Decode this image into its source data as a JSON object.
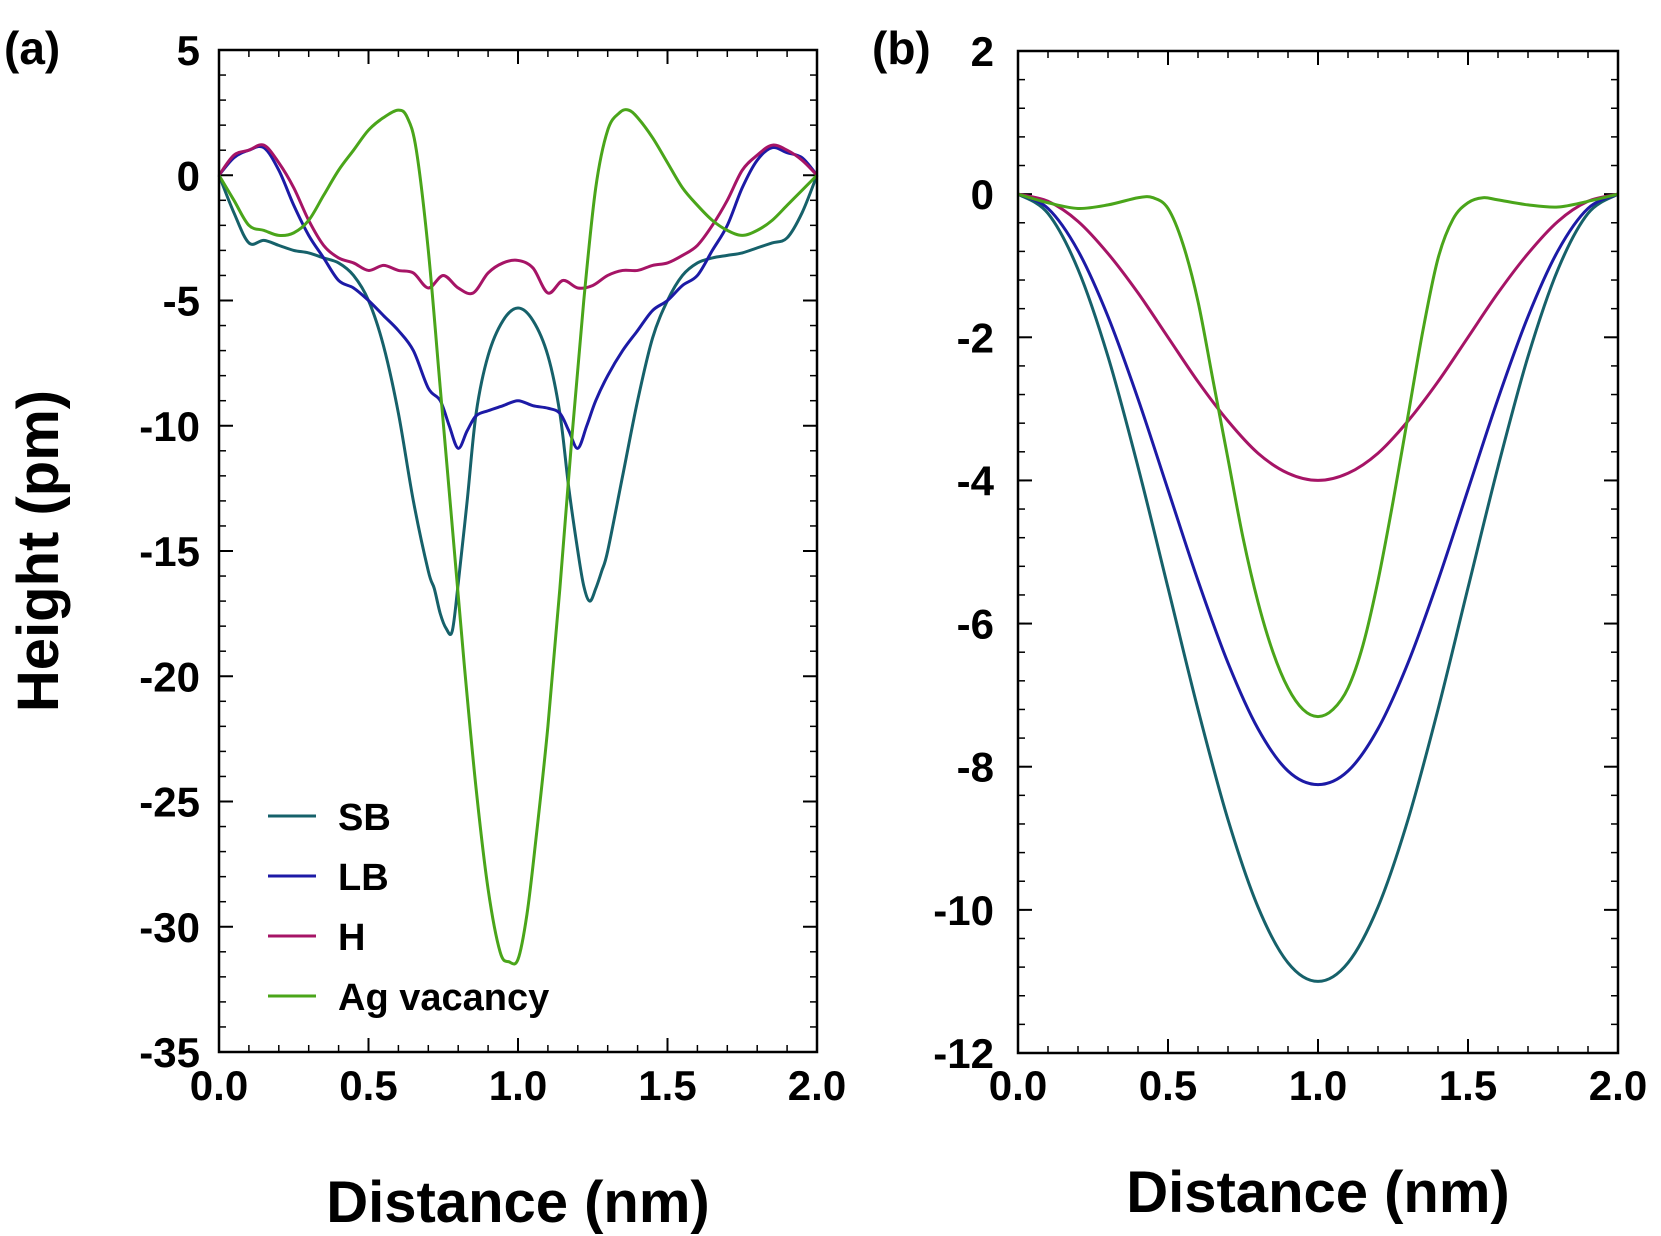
{
  "figure": {
    "ylabel": "Height (pm)"
  },
  "colors": {
    "SB": "#16616a",
    "LB": "#1c1aa6",
    "H": "#a61466",
    "Ag vacancy": "#4aa51a"
  },
  "chart_data": [
    {
      "panel_label": "(a)",
      "type": "line",
      "title": "",
      "xlabel": "Distance (nm)",
      "ylabel": "Height (pm)",
      "xlim": [
        0,
        2
      ],
      "ylim": [
        -35,
        5
      ],
      "xticks": [
        0,
        0.5,
        1,
        1.5,
        2
      ],
      "xtick_labels": [
        "0.0",
        "0.5",
        "1.0",
        "1.5",
        "2.0"
      ],
      "yticks": [
        5,
        0,
        -5,
        -10,
        -15,
        -20,
        -25,
        -30,
        -35
      ],
      "ytick_labels": [
        "5",
        "0",
        "-5",
        "-10",
        "-15",
        "-20",
        "-25",
        "-30",
        "-35"
      ],
      "grid": false,
      "legend": {
        "position": "bottom-left",
        "entries": [
          "SB",
          "LB",
          "H",
          "Ag vacancy"
        ]
      },
      "series": [
        {
          "name": "SB",
          "x": [
            0,
            0.05,
            0.1,
            0.15,
            0.2,
            0.25,
            0.3,
            0.35,
            0.4,
            0.45,
            0.5,
            0.55,
            0.6,
            0.65,
            0.7,
            0.72,
            0.74,
            0.76,
            0.78,
            0.8,
            0.83,
            0.86,
            0.9,
            0.95,
            1,
            1.05,
            1.1,
            1.14,
            1.17,
            1.2,
            1.22,
            1.24,
            1.26,
            1.28,
            1.3,
            1.35,
            1.4,
            1.45,
            1.5,
            1.55,
            1.6,
            1.65,
            1.7,
            1.75,
            1.8,
            1.85,
            1.9,
            1.95,
            2
          ],
          "y": [
            0,
            -1.5,
            -2.7,
            -2.6,
            -2.8,
            -3.0,
            -3.1,
            -3.3,
            -3.5,
            -4.0,
            -5.0,
            -6.8,
            -9.5,
            -13.0,
            -15.8,
            -16.5,
            -17.5,
            -18.1,
            -18.2,
            -16.3,
            -13.0,
            -9.5,
            -7.2,
            -5.8,
            -5.3,
            -5.8,
            -7.2,
            -9.5,
            -12.5,
            -15.0,
            -16.4,
            -17.0,
            -16.5,
            -15.8,
            -15.0,
            -12.0,
            -9.0,
            -6.5,
            -5.0,
            -4.0,
            -3.5,
            -3.3,
            -3.2,
            -3.1,
            -2.9,
            -2.7,
            -2.5,
            -1.5,
            0
          ]
        },
        {
          "name": "LB",
          "x": [
            0,
            0.05,
            0.1,
            0.15,
            0.2,
            0.25,
            0.3,
            0.35,
            0.4,
            0.45,
            0.5,
            0.55,
            0.6,
            0.65,
            0.7,
            0.74,
            0.77,
            0.8,
            0.83,
            0.86,
            0.9,
            0.95,
            1,
            1.05,
            1.1,
            1.14,
            1.17,
            1.2,
            1.23,
            1.26,
            1.3,
            1.35,
            1.4,
            1.45,
            1.5,
            1.55,
            1.6,
            1.65,
            1.7,
            1.75,
            1.8,
            1.85,
            1.9,
            1.95,
            2
          ],
          "y": [
            0,
            0.7,
            1.0,
            1.1,
            0.2,
            -1.2,
            -2.4,
            -3.3,
            -4.2,
            -4.5,
            -5.0,
            -5.6,
            -6.2,
            -7.0,
            -8.5,
            -9.0,
            -10.0,
            -10.9,
            -10.2,
            -9.6,
            -9.4,
            -9.2,
            -9.0,
            -9.2,
            -9.3,
            -9.5,
            -10.2,
            -10.9,
            -10.0,
            -9.0,
            -8.0,
            -7.0,
            -6.2,
            -5.4,
            -5.0,
            -4.4,
            -4.0,
            -3.0,
            -2.0,
            -0.5,
            0.6,
            1.1,
            0.9,
            0.7,
            0
          ]
        },
        {
          "name": "H",
          "x": [
            0,
            0.05,
            0.1,
            0.15,
            0.2,
            0.25,
            0.3,
            0.35,
            0.4,
            0.45,
            0.5,
            0.55,
            0.6,
            0.65,
            0.7,
            0.75,
            0.8,
            0.85,
            0.9,
            0.95,
            1,
            1.05,
            1.1,
            1.15,
            1.2,
            1.25,
            1.3,
            1.35,
            1.4,
            1.45,
            1.5,
            1.55,
            1.6,
            1.65,
            1.7,
            1.75,
            1.8,
            1.85,
            1.9,
            1.95,
            2
          ],
          "y": [
            0,
            0.8,
            1.0,
            1.2,
            0.5,
            -0.5,
            -1.8,
            -2.8,
            -3.3,
            -3.5,
            -3.8,
            -3.6,
            -3.8,
            -3.9,
            -4.5,
            -4.0,
            -4.5,
            -4.7,
            -3.9,
            -3.5,
            -3.4,
            -3.7,
            -4.7,
            -4.2,
            -4.5,
            -4.4,
            -4.0,
            -3.8,
            -3.8,
            -3.6,
            -3.5,
            -3.2,
            -2.8,
            -2.0,
            -1.0,
            0.2,
            0.8,
            1.2,
            1.0,
            0.6,
            0
          ]
        },
        {
          "name": "Ag vacancy",
          "x": [
            0,
            0.05,
            0.1,
            0.15,
            0.2,
            0.25,
            0.3,
            0.35,
            0.4,
            0.45,
            0.5,
            0.55,
            0.6,
            0.63,
            0.66,
            0.7,
            0.74,
            0.78,
            0.82,
            0.86,
            0.9,
            0.94,
            0.97,
            1,
            1.03,
            1.06,
            1.1,
            1.14,
            1.18,
            1.22,
            1.26,
            1.3,
            1.34,
            1.37,
            1.4,
            1.45,
            1.5,
            1.55,
            1.6,
            1.65,
            1.7,
            1.75,
            1.8,
            1.85,
            1.9,
            1.95,
            2
          ],
          "y": [
            0,
            -1.0,
            -2.0,
            -2.2,
            -2.4,
            -2.3,
            -1.8,
            -0.8,
            0.2,
            1.0,
            1.8,
            2.3,
            2.6,
            2.3,
            1.0,
            -3.0,
            -8.5,
            -14.0,
            -19.5,
            -24.5,
            -28.5,
            -31.0,
            -31.4,
            -31.3,
            -29.5,
            -26.5,
            -22.0,
            -16.5,
            -10.5,
            -5.0,
            -0.5,
            1.8,
            2.5,
            2.6,
            2.3,
            1.5,
            0.5,
            -0.5,
            -1.2,
            -1.8,
            -2.2,
            -2.4,
            -2.2,
            -1.8,
            -1.2,
            -0.6,
            0
          ]
        }
      ]
    },
    {
      "panel_label": "(b)",
      "type": "line",
      "title": "",
      "xlabel": "Distance (nm)",
      "ylabel": "",
      "xlim": [
        0,
        2
      ],
      "ylim": [
        -12,
        2
      ],
      "xticks": [
        0,
        0.5,
        1,
        1.5,
        2
      ],
      "xtick_labels": [
        "0.0",
        "0.5",
        "1.0",
        "1.5",
        "2.0"
      ],
      "yticks": [
        2,
        0,
        -2,
        -4,
        -6,
        -8,
        -10,
        -12
      ],
      "ytick_labels": [
        "2",
        "0",
        "-2",
        "-4",
        "-6",
        "-8",
        "-10",
        "-12"
      ],
      "grid": false,
      "series": [
        {
          "name": "SB",
          "x": [
            0,
            0.1,
            0.2,
            0.3,
            0.4,
            0.5,
            0.6,
            0.7,
            0.8,
            0.9,
            1,
            1.1,
            1.2,
            1.3,
            1.4,
            1.5,
            1.6,
            1.7,
            1.8,
            1.9,
            2
          ],
          "y": [
            0,
            -0.27,
            -1.05,
            -2.27,
            -3.81,
            -5.5,
            -7.2,
            -8.74,
            -9.96,
            -10.74,
            -11.0,
            -10.74,
            -9.96,
            -8.74,
            -7.2,
            -5.5,
            -3.81,
            -2.27,
            -1.05,
            -0.27,
            0
          ]
        },
        {
          "name": "LB",
          "x": [
            0,
            0.1,
            0.2,
            0.3,
            0.4,
            0.5,
            0.6,
            0.7,
            0.8,
            0.9,
            1,
            1.1,
            1.2,
            1.3,
            1.4,
            1.5,
            1.6,
            1.7,
            1.8,
            1.9,
            2
          ],
          "y": [
            0,
            -0.2,
            -0.79,
            -1.71,
            -2.86,
            -4.13,
            -5.4,
            -6.55,
            -7.47,
            -8.06,
            -8.25,
            -8.06,
            -7.47,
            -6.55,
            -5.4,
            -4.13,
            -2.86,
            -1.71,
            -0.79,
            -0.2,
            0
          ]
        },
        {
          "name": "H",
          "x": [
            0,
            0.1,
            0.2,
            0.3,
            0.4,
            0.5,
            0.6,
            0.7,
            0.8,
            0.9,
            1,
            1.1,
            1.2,
            1.3,
            1.4,
            1.5,
            1.6,
            1.7,
            1.8,
            1.9,
            2
          ],
          "y": [
            0,
            -0.1,
            -0.38,
            -0.83,
            -1.38,
            -2.0,
            -2.62,
            -3.17,
            -3.62,
            -3.9,
            -4.0,
            -3.9,
            -3.62,
            -3.17,
            -2.62,
            -2.0,
            -1.38,
            -0.83,
            -0.38,
            -0.1,
            0
          ]
        },
        {
          "name": "Ag vacancy",
          "x": [
            0,
            0.1,
            0.2,
            0.3,
            0.4,
            0.45,
            0.5,
            0.55,
            0.6,
            0.65,
            0.7,
            0.75,
            0.8,
            0.85,
            0.9,
            0.95,
            1,
            1.05,
            1.1,
            1.15,
            1.2,
            1.25,
            1.3,
            1.35,
            1.4,
            1.45,
            1.5,
            1.55,
            1.6,
            1.7,
            1.8,
            1.9,
            2
          ],
          "y": [
            0,
            -0.12,
            -0.2,
            -0.15,
            -0.05,
            -0.05,
            -0.2,
            -0.7,
            -1.5,
            -2.6,
            -3.7,
            -4.8,
            -5.7,
            -6.4,
            -6.9,
            -7.2,
            -7.3,
            -7.2,
            -6.9,
            -6.3,
            -5.4,
            -4.3,
            -3.1,
            -1.9,
            -0.9,
            -0.35,
            -0.12,
            -0.05,
            -0.08,
            -0.15,
            -0.18,
            -0.1,
            0
          ]
        }
      ]
    }
  ]
}
